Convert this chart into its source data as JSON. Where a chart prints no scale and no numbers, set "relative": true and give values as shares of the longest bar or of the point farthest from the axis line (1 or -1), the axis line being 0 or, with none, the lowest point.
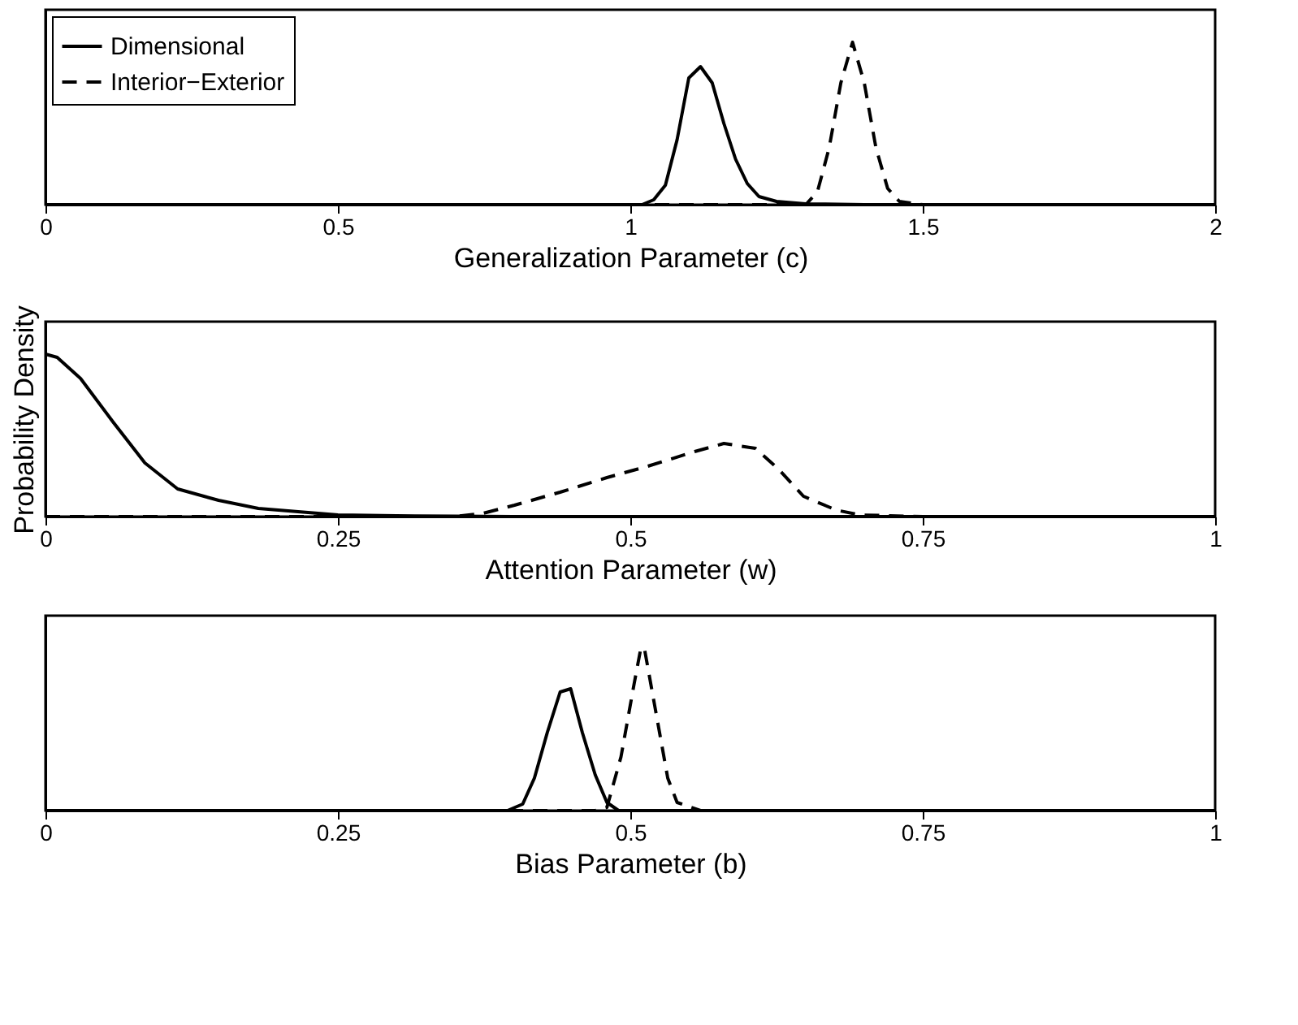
{
  "chart_data": [
    {
      "type": "line",
      "relative": true,
      "xlabel": "Generalization Parameter (c)",
      "xlim": [
        0,
        2
      ],
      "xticks": [
        0,
        0.5,
        1,
        1.5,
        2
      ],
      "grid": false,
      "legend": "top left",
      "series": [
        {
          "name": "Dimensional",
          "color": "#000000",
          "line_style": "solid",
          "x": [
            0,
            0.5,
            1.0,
            1.02,
            1.04,
            1.06,
            1.08,
            1.1,
            1.12,
            1.14,
            1.16,
            1.18,
            1.2,
            1.22,
            1.25,
            1.3,
            1.4,
            2
          ],
          "values": [
            0,
            0,
            0,
            0,
            0.03,
            0.12,
            0.4,
            0.78,
            0.85,
            0.75,
            0.5,
            0.28,
            0.13,
            0.05,
            0.02,
            0.005,
            0,
            0
          ]
        },
        {
          "name": "Interior−Exterior",
          "color": "#000000",
          "line_style": "dashed",
          "x": [
            0,
            0.5,
            1.0,
            1.3,
            1.32,
            1.34,
            1.36,
            1.38,
            1.4,
            1.42,
            1.44,
            1.46,
            1.5,
            2
          ],
          "values": [
            0,
            0,
            0,
            0,
            0.08,
            0.35,
            0.75,
            1.0,
            0.75,
            0.35,
            0.1,
            0.02,
            0,
            0
          ]
        }
      ]
    },
    {
      "type": "line",
      "relative": true,
      "xlabel": "Attention Parameter (w)",
      "ylabel": "Probability Density",
      "xlim": [
        0,
        1
      ],
      "xticks": [
        0,
        0.25,
        0.5,
        0.75,
        1
      ],
      "grid": false,
      "series": [
        {
          "color": "#000000",
          "line_style": "solid",
          "x": [
            0,
            0.01,
            0.03,
            0.058,
            0.085,
            0.113,
            0.148,
            0.182,
            0.25,
            0.3,
            0.35,
            0.4,
            0.6,
            1
          ],
          "values": [
            1.0,
            0.98,
            0.85,
            0.58,
            0.33,
            0.17,
            0.1,
            0.05,
            0.01,
            0.005,
            0.002,
            0,
            0,
            0
          ]
        },
        {
          "color": "#000000",
          "line_style": "dashed",
          "x": [
            0,
            0.2,
            0.35,
            0.374,
            0.401,
            0.44,
            0.48,
            0.515,
            0.555,
            0.58,
            0.607,
            0.627,
            0.648,
            0.676,
            0.696,
            0.75,
            1
          ],
          "values": [
            0,
            0,
            0,
            0.02,
            0.07,
            0.15,
            0.24,
            0.31,
            0.4,
            0.45,
            0.42,
            0.29,
            0.125,
            0.04,
            0.01,
            0,
            0
          ]
        }
      ]
    },
    {
      "type": "line",
      "relative": true,
      "xlabel": "Bias Parameter (b)",
      "xlim": [
        0,
        1
      ],
      "xticks": [
        0,
        0.25,
        0.5,
        0.75,
        1
      ],
      "grid": false,
      "series": [
        {
          "color": "#000000",
          "line_style": "solid",
          "x": [
            0,
            0.2,
            0.395,
            0.408,
            0.418,
            0.429,
            0.44,
            0.449,
            0.459,
            0.47,
            0.48,
            0.49,
            0.6,
            1
          ],
          "values": [
            0,
            0,
            0,
            0.04,
            0.2,
            0.48,
            0.73,
            0.75,
            0.48,
            0.22,
            0.05,
            0,
            0,
            0
          ]
        },
        {
          "color": "#000000",
          "line_style": "dashed",
          "x": [
            0,
            0.2,
            0.47,
            0.48,
            0.492,
            0.503,
            0.509,
            0.512,
            0.521,
            0.532,
            0.54,
            0.56,
            0.7,
            1
          ],
          "values": [
            0,
            0,
            0,
            0.02,
            0.33,
            0.77,
            1.0,
            1.0,
            0.64,
            0.2,
            0.05,
            0,
            0,
            0
          ]
        }
      ]
    }
  ]
}
